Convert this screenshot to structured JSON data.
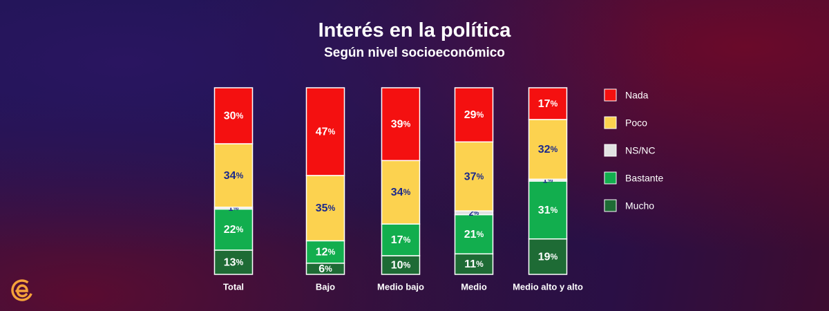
{
  "header": {
    "title": "Interés en la política",
    "subtitle": "Según nivel socioeconómico"
  },
  "brand": {
    "logo_icon": "e-logo-icon",
    "color": "#F5A23A"
  },
  "chart_data": {
    "type": "bar",
    "stacked": true,
    "percent_suffix": "%",
    "categories": [
      "Total",
      "Bajo",
      "Medio bajo",
      "Medio",
      "Medio alto y alto"
    ],
    "series": [
      {
        "name": "Mucho",
        "color": "#1E6B35",
        "label_color": "#ffffff",
        "values": [
          13,
          6,
          10,
          11,
          19
        ]
      },
      {
        "name": "Bastante",
        "color": "#12AE4E",
        "label_color": "#ffffff",
        "values": [
          22,
          12,
          17,
          21,
          31
        ]
      },
      {
        "name": "NS/NC",
        "color": "#E2E2E2",
        "label_color": "#1B2A8C",
        "values": [
          1,
          0,
          0,
          2,
          1
        ]
      },
      {
        "name": "Poco",
        "color": "#FCD24F",
        "label_color": "#1B2A8C",
        "values": [
          34,
          35,
          34,
          37,
          32
        ]
      },
      {
        "name": "Nada",
        "color": "#F41010",
        "label_color": "#ffffff",
        "values": [
          30,
          47,
          39,
          29,
          17
        ]
      }
    ],
    "legend_order": [
      "Nada",
      "Poco",
      "NS/NC",
      "Bastante",
      "Mucho"
    ],
    "ylim": [
      0,
      100
    ]
  }
}
